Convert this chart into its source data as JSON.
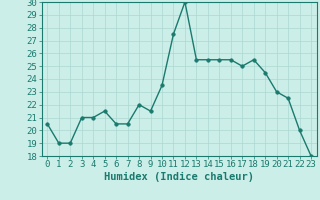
{
  "x": [
    0,
    1,
    2,
    3,
    4,
    5,
    6,
    7,
    8,
    9,
    10,
    11,
    12,
    13,
    14,
    15,
    16,
    17,
    18,
    19,
    20,
    21,
    22,
    23
  ],
  "y": [
    20.5,
    19.0,
    19.0,
    21.0,
    21.0,
    21.5,
    20.5,
    20.5,
    22.0,
    21.5,
    23.5,
    27.5,
    30.0,
    25.5,
    25.5,
    25.5,
    25.5,
    25.0,
    25.5,
    24.5,
    23.0,
    22.5,
    20.0,
    18.0
  ],
  "line_color": "#1a7a6e",
  "marker_color": "#1a7a6e",
  "bg_color": "#cceee8",
  "grid_color": "#aad8d0",
  "xlabel": "Humidex (Indice chaleur)",
  "ylim": [
    18,
    30
  ],
  "xlim": [
    -0.5,
    23.5
  ],
  "yticks": [
    18,
    19,
    20,
    21,
    22,
    23,
    24,
    25,
    26,
    27,
    28,
    29,
    30
  ],
  "xticks": [
    0,
    1,
    2,
    3,
    4,
    5,
    6,
    7,
    8,
    9,
    10,
    11,
    12,
    13,
    14,
    15,
    16,
    17,
    18,
    19,
    20,
    21,
    22,
    23
  ],
  "xlabel_fontsize": 7.5,
  "tick_fontsize": 6.5,
  "linewidth": 1.0,
  "markersize": 2.5
}
